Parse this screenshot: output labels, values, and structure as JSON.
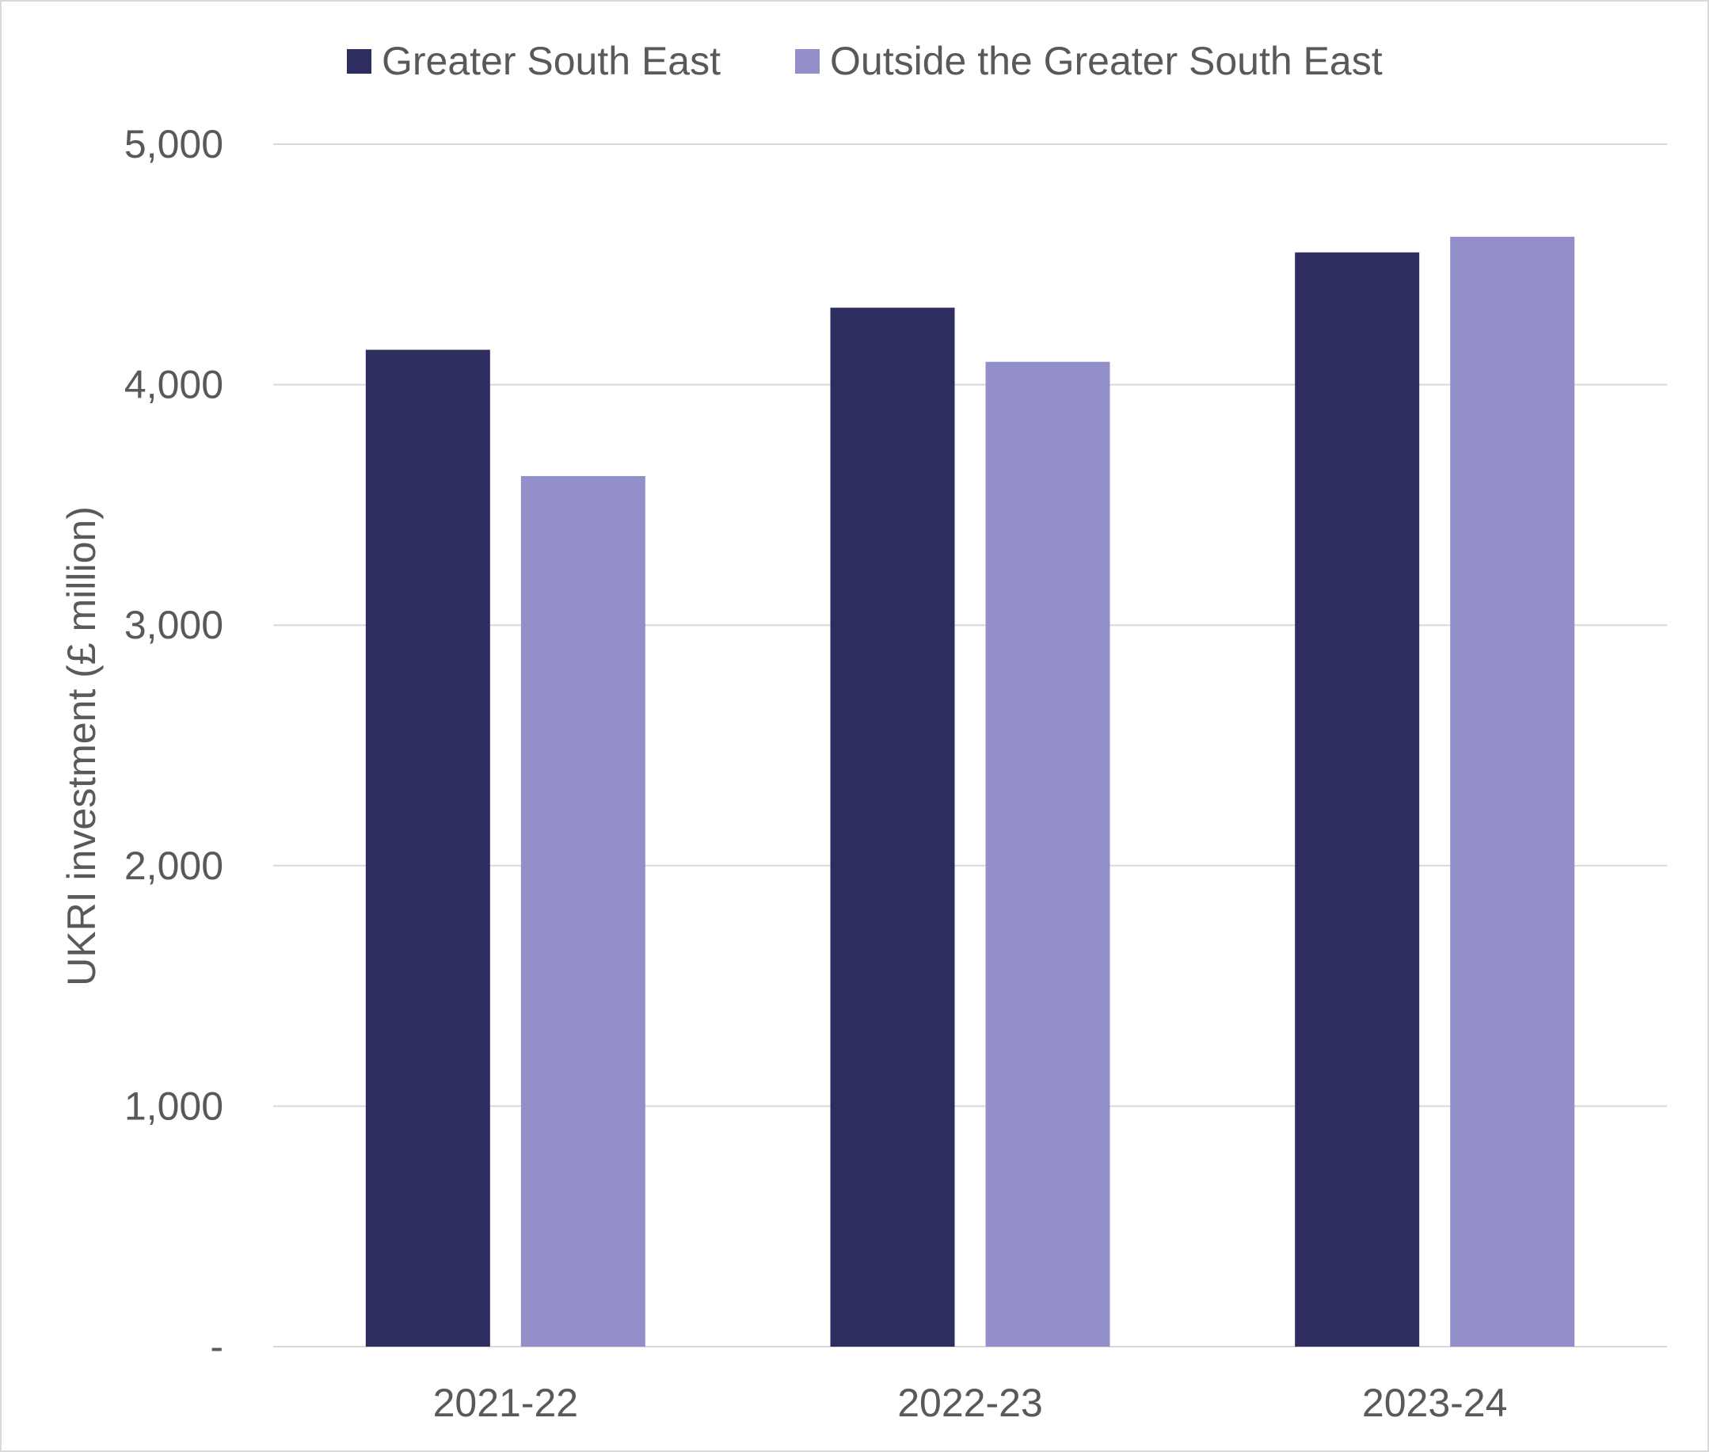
{
  "chart_data": {
    "type": "bar",
    "title": "",
    "xlabel": "",
    "ylabel": "UKRI investment (£ million)",
    "categories": [
      "2021-22",
      "2022-23",
      "2023-24"
    ],
    "series": [
      {
        "name": "Greater South East",
        "color": "#2e2d5f",
        "values": [
          4145,
          4320,
          4550
        ]
      },
      {
        "name": "Outside the Greater South East",
        "color": "#938fcb",
        "values": [
          3620,
          4095,
          4615
        ]
      }
    ],
    "ylim": [
      0,
      5000
    ],
    "yticks": [
      0,
      1000,
      2000,
      3000,
      4000,
      5000
    ],
    "ytick_labels": [
      "-",
      "1,000",
      "2,000",
      "3,000",
      "4,000",
      "5,000"
    ],
    "grid": true,
    "legend_position": "top",
    "gridline_color": "#d9d9d9"
  }
}
